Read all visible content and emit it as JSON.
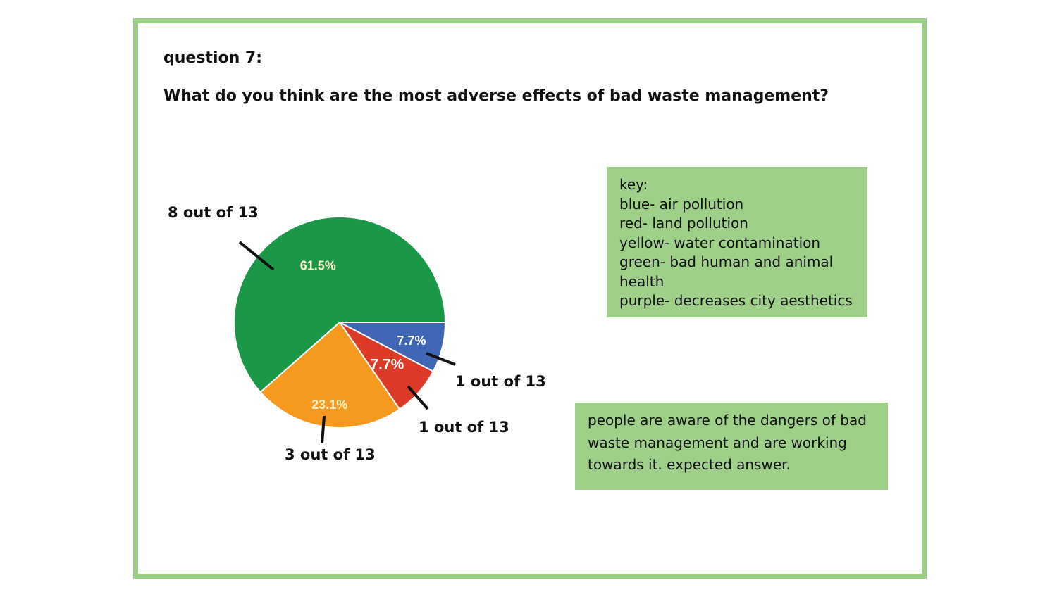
{
  "heading": "question 7:",
  "question": "What do you think are the most adverse effects of bad waste management?",
  "key": {
    "lines": [
      "key:",
      "blue- air pollution",
      "red- land pollution",
      "yellow- water contamination",
      "green- bad human and animal",
      "health",
      "purple- decreases city aesthetics"
    ]
  },
  "note": "people are aware of the dangers of bad waste management and are working towards it. expected answer.",
  "callouts": {
    "green": "8 out of 13",
    "blue": "1 out of 13",
    "red": "1 out of 13",
    "yellow": "3 out of 13"
  },
  "colors": {
    "frame": "#9bcf87",
    "box": "#9fd08a"
  },
  "chart_data": {
    "type": "pie",
    "start_angle_deg": 0,
    "slices": [
      {
        "key": "blue",
        "label": "7.7%",
        "value": 7.7,
        "color": "#3f67b6"
      },
      {
        "key": "red",
        "label": "7.7%",
        "value": 7.7,
        "color": "#dc3a27"
      },
      {
        "key": "yellow",
        "label": "23.1%",
        "value": 23.1,
        "color": "#f59a1f"
      },
      {
        "key": "green",
        "label": "61.5%",
        "value": 61.5,
        "color": "#1a9848"
      }
    ]
  }
}
